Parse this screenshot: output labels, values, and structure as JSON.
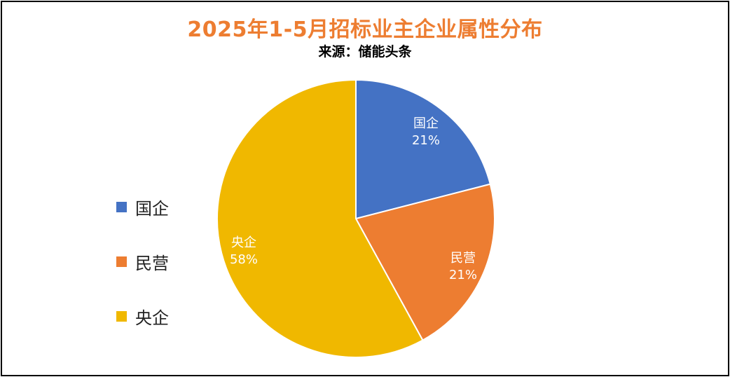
{
  "chart_data": {
    "type": "pie",
    "title": "2025年1-5月招标业主企业属性分布",
    "subtitle": "来源：储能头条",
    "categories": [
      "国企",
      "民营",
      "央企"
    ],
    "values": [
      21,
      21,
      58
    ],
    "labels": [
      "21%",
      "21%",
      "58%"
    ],
    "colors": [
      "#4472C4",
      "#ED7D31",
      "#F0B800"
    ],
    "legend_position": "left",
    "start_angle_deg": 0,
    "direction": "clockwise"
  }
}
